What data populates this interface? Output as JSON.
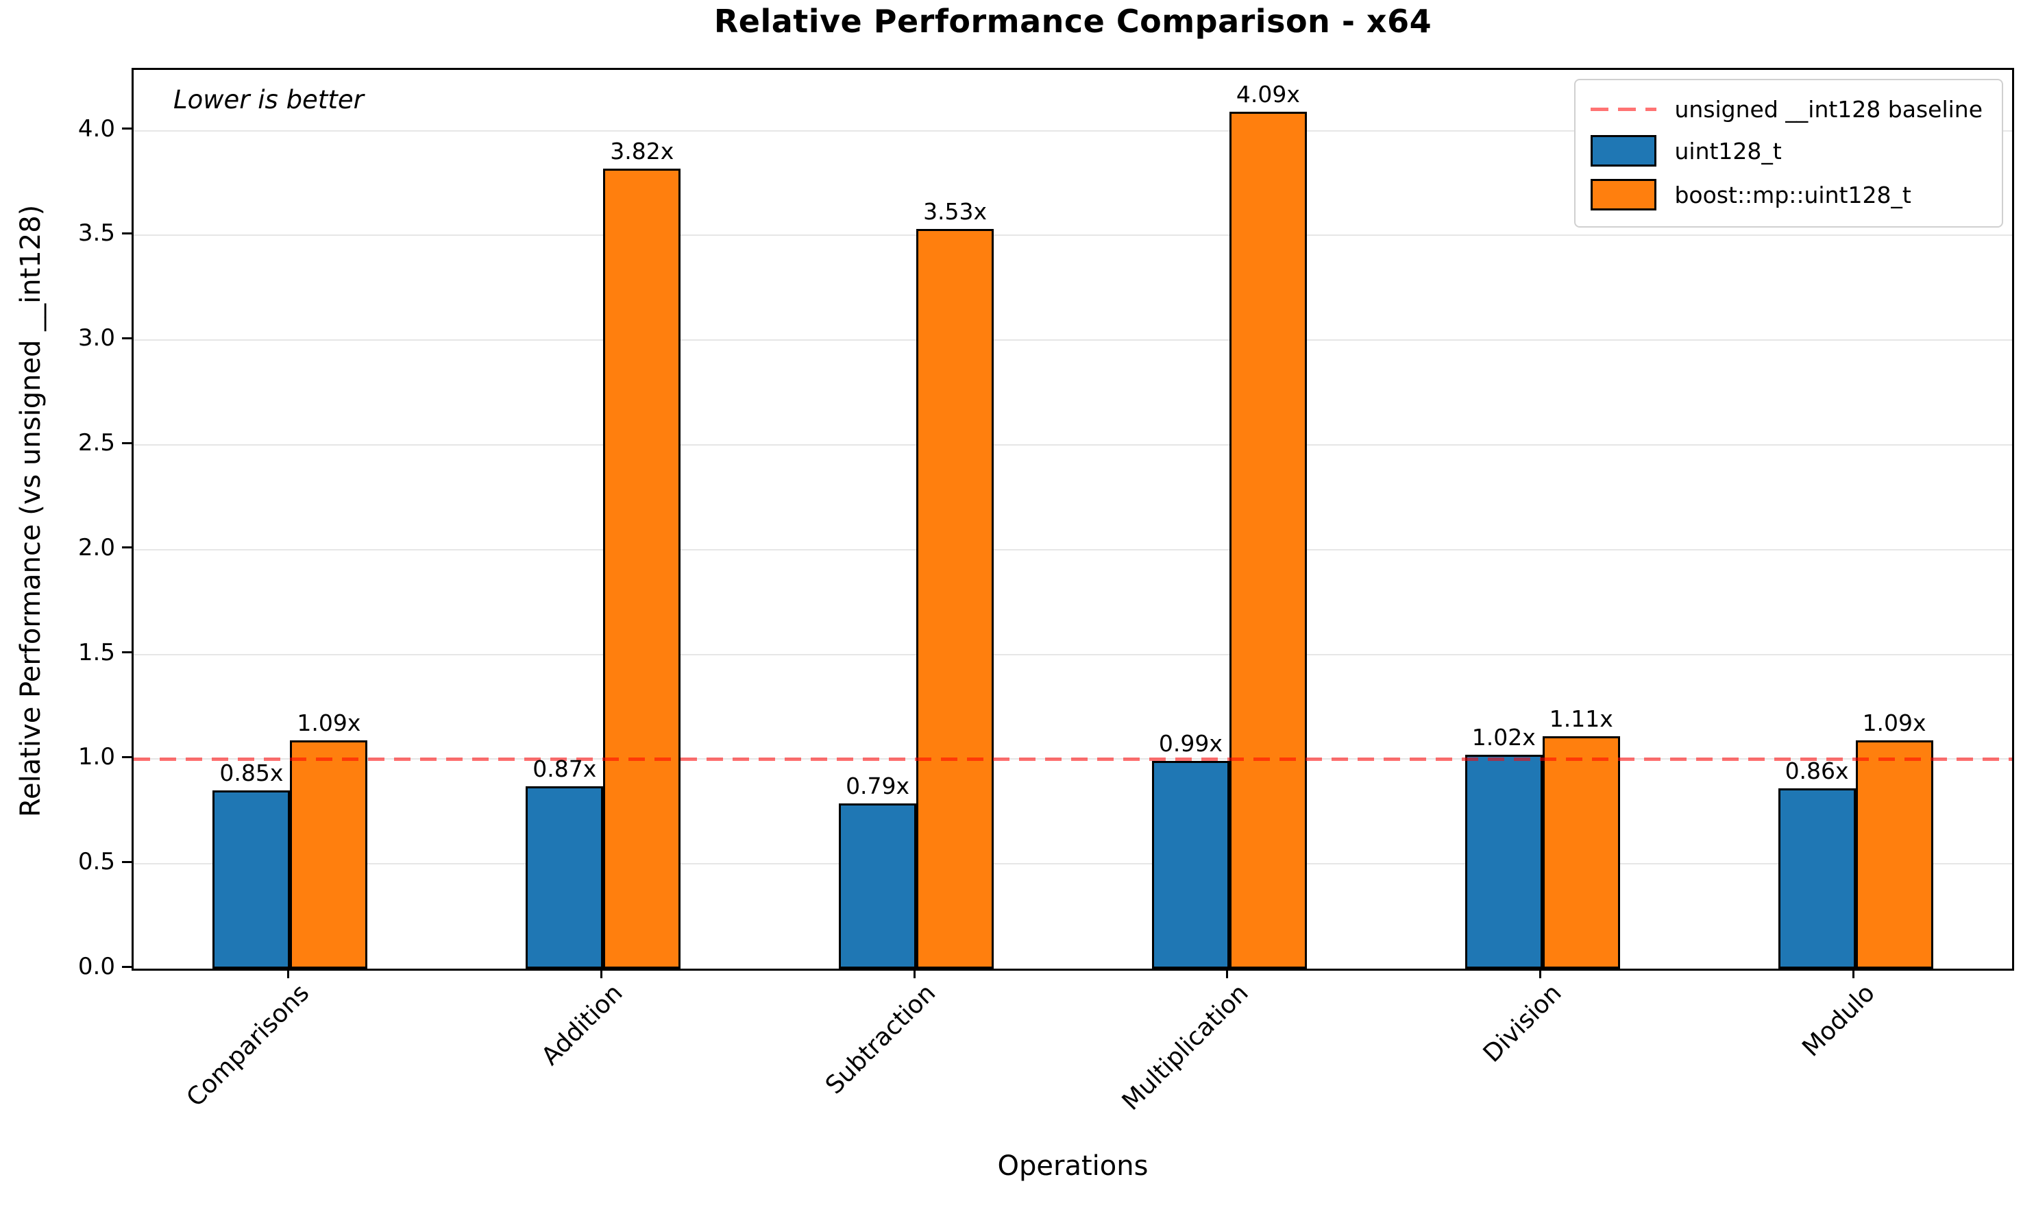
{
  "chart_data": {
    "type": "bar",
    "title": "Relative Performance Comparison - x64",
    "xlabel": "Operations",
    "ylabel": "Relative Performance (vs unsigned __int128)",
    "annotation": "Lower is better",
    "categories": [
      "Comparisons",
      "Addition",
      "Subtraction",
      "Multiplication",
      "Division",
      "Modulo"
    ],
    "series": [
      {
        "name": "uint128_t",
        "color": "#1f77b4",
        "values": [
          0.85,
          0.87,
          0.79,
          0.99,
          1.02,
          0.86
        ],
        "labels": [
          "0.85x",
          "0.87x",
          "0.79x",
          "0.99x",
          "1.02x",
          "0.86x"
        ]
      },
      {
        "name": "boost::mp::uint128_t",
        "color": "#ff7f0e",
        "values": [
          1.09,
          3.82,
          3.53,
          4.09,
          1.11,
          1.09
        ],
        "labels": [
          "1.09x",
          "3.82x",
          "3.53x",
          "4.09x",
          "1.11x",
          "1.09x"
        ]
      }
    ],
    "baseline": {
      "value": 1.0,
      "label": "unsigned __int128 baseline",
      "color": "#ff0000",
      "opacity": 0.55
    },
    "bar_edge_color": "#000000",
    "grid": true,
    "grid_color": "#e6e6e6",
    "yticks": [
      "0.0",
      "0.5",
      "1.0",
      "1.5",
      "2.0",
      "2.5",
      "3.0",
      "3.5",
      "4.0"
    ],
    "ylim": [
      0,
      4.29
    ],
    "legend_position": "upper right"
  }
}
